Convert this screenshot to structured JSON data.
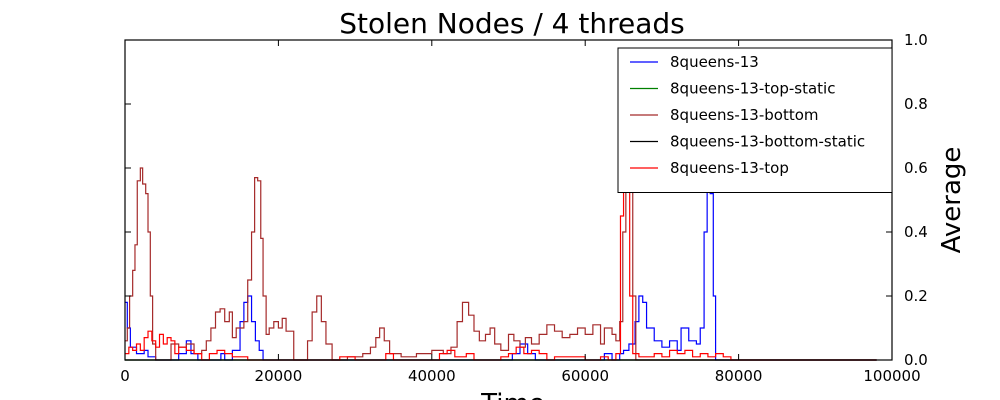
{
  "chart_data": {
    "type": "line",
    "title": "Stolen Nodes / 4 threads",
    "xlabel": "Time",
    "ylabel": "Average",
    "xlim": [
      0,
      100000
    ],
    "ylim": [
      0,
      1.0
    ],
    "x_ticks": [
      "0",
      "20000",
      "40000",
      "60000",
      "80000",
      "100000"
    ],
    "y_ticks": [
      "0.0",
      "0.2",
      "0.4",
      "0.6",
      "0.8",
      "1.0"
    ],
    "y_axis_side": "right",
    "grid": false,
    "legend_position": "top-right",
    "series": [
      {
        "name": "8queens-13",
        "color": "#0000ff",
        "points": [
          [
            0,
            0.18
          ],
          [
            300,
            0.1
          ],
          [
            700,
            0.04
          ],
          [
            1500,
            0.02
          ],
          [
            2500,
            0.03
          ],
          [
            3000,
            0.01
          ],
          [
            4000,
            0.0
          ],
          [
            7000,
            0.02
          ],
          [
            8000,
            0.06
          ],
          [
            8600,
            0.02
          ],
          [
            9500,
            0.0
          ],
          [
            11500,
            0.0
          ],
          [
            12500,
            0.02
          ],
          [
            13000,
            0.0
          ],
          [
            14000,
            0.03
          ],
          [
            15000,
            0.12
          ],
          [
            15500,
            0.18
          ],
          [
            16000,
            0.2
          ],
          [
            16500,
            0.12
          ],
          [
            17000,
            0.06
          ],
          [
            17500,
            0.03
          ],
          [
            18000,
            0.0
          ],
          [
            50000,
            0.0
          ],
          [
            50500,
            0.02
          ],
          [
            51500,
            0.05
          ],
          [
            52500,
            0.02
          ],
          [
            53500,
            0.0
          ],
          [
            61500,
            0.0
          ],
          [
            62500,
            0.02
          ],
          [
            63500,
            0.0
          ],
          [
            64500,
            0.02
          ],
          [
            65000,
            0.03
          ],
          [
            65700,
            0.05
          ],
          [
            66500,
            0.12
          ],
          [
            67000,
            0.2
          ],
          [
            67500,
            0.18
          ],
          [
            68000,
            0.1
          ],
          [
            69000,
            0.06
          ],
          [
            70000,
            0.04
          ],
          [
            71000,
            0.06
          ],
          [
            72000,
            0.03
          ],
          [
            72500,
            0.1
          ],
          [
            73000,
            0.1
          ],
          [
            73500,
            0.06
          ],
          [
            74500,
            0.05
          ],
          [
            75000,
            0.1
          ],
          [
            75500,
            0.4
          ],
          [
            75900,
            0.6
          ],
          [
            76300,
            0.52
          ],
          [
            76700,
            0.2
          ],
          [
            77000,
            0.0
          ],
          [
            98000,
            0.0
          ]
        ]
      },
      {
        "name": "8queens-13-top-static",
        "color": "#008000",
        "points": [
          [
            0,
            0.0
          ],
          [
            98000,
            0.0
          ]
        ]
      },
      {
        "name": "8queens-13-bottom",
        "color": "#a52a2a",
        "points": [
          [
            0,
            0.06
          ],
          [
            300,
            0.1
          ],
          [
            600,
            0.2
          ],
          [
            1000,
            0.28
          ],
          [
            1300,
            0.36
          ],
          [
            1600,
            0.56
          ],
          [
            2000,
            0.6
          ],
          [
            2300,
            0.55
          ],
          [
            2700,
            0.52
          ],
          [
            3000,
            0.4
          ],
          [
            3300,
            0.2
          ],
          [
            3600,
            0.05
          ],
          [
            4000,
            0.0
          ],
          [
            5500,
            0.0
          ],
          [
            6000,
            0.05
          ],
          [
            7000,
            0.04
          ],
          [
            8000,
            0.05
          ],
          [
            9000,
            0.02
          ],
          [
            10000,
            0.03
          ],
          [
            10600,
            0.06
          ],
          [
            11200,
            0.1
          ],
          [
            11800,
            0.15
          ],
          [
            12400,
            0.16
          ],
          [
            13000,
            0.12
          ],
          [
            13600,
            0.15
          ],
          [
            14000,
            0.07
          ],
          [
            14500,
            0.1
          ],
          [
            15500,
            0.12
          ],
          [
            16000,
            0.25
          ],
          [
            16500,
            0.4
          ],
          [
            16900,
            0.57
          ],
          [
            17300,
            0.56
          ],
          [
            17700,
            0.38
          ],
          [
            18000,
            0.2
          ],
          [
            18400,
            0.08
          ],
          [
            18800,
            0.1
          ],
          [
            19400,
            0.12
          ],
          [
            20000,
            0.1
          ],
          [
            20500,
            0.13
          ],
          [
            21000,
            0.09
          ],
          [
            22000,
            0.0
          ],
          [
            23000,
            0.0
          ],
          [
            23800,
            0.06
          ],
          [
            24400,
            0.15
          ],
          [
            25000,
            0.2
          ],
          [
            25600,
            0.12
          ],
          [
            26200,
            0.05
          ],
          [
            27000,
            0.0
          ],
          [
            28000,
            0.0
          ],
          [
            29000,
            0.01
          ],
          [
            31000,
            0.02
          ],
          [
            32000,
            0.04
          ],
          [
            32700,
            0.07
          ],
          [
            33200,
            0.1
          ],
          [
            33800,
            0.06
          ],
          [
            34500,
            0.02
          ],
          [
            36000,
            0.01
          ],
          [
            38000,
            0.02
          ],
          [
            40000,
            0.03
          ],
          [
            41500,
            0.02
          ],
          [
            42500,
            0.04
          ],
          [
            43300,
            0.12
          ],
          [
            44000,
            0.18
          ],
          [
            44800,
            0.14
          ],
          [
            45500,
            0.09
          ],
          [
            46200,
            0.06
          ],
          [
            47000,
            0.08
          ],
          [
            47600,
            0.1
          ],
          [
            48200,
            0.05
          ],
          [
            49000,
            0.03
          ],
          [
            50000,
            0.08
          ],
          [
            50700,
            0.06
          ],
          [
            51500,
            0.04
          ],
          [
            52200,
            0.07
          ],
          [
            53000,
            0.05
          ],
          [
            54000,
            0.08
          ],
          [
            55000,
            0.11
          ],
          [
            56000,
            0.09
          ],
          [
            57000,
            0.07
          ],
          [
            58000,
            0.08
          ],
          [
            59000,
            0.1
          ],
          [
            60000,
            0.08
          ],
          [
            61000,
            0.11
          ],
          [
            62000,
            0.05
          ],
          [
            62500,
            0.1
          ],
          [
            63500,
            0.08
          ],
          [
            64000,
            0.06
          ],
          [
            64500,
            0.12
          ],
          [
            64900,
            0.4
          ],
          [
            65300,
            0.58
          ],
          [
            65800,
            0.58
          ],
          [
            66200,
            0.2
          ],
          [
            66600,
            0.0
          ],
          [
            98000,
            0.0
          ]
        ]
      },
      {
        "name": "8queens-13-bottom-static",
        "color": "#000000",
        "points": [
          [
            0,
            0.0
          ],
          [
            98000,
            0.0
          ]
        ]
      },
      {
        "name": "8queens-13-top",
        "color": "#ff0000",
        "points": [
          [
            0,
            0.02
          ],
          [
            500,
            0.04
          ],
          [
            1000,
            0.03
          ],
          [
            1500,
            0.05
          ],
          [
            2000,
            0.03
          ],
          [
            2500,
            0.07
          ],
          [
            3000,
            0.09
          ],
          [
            3500,
            0.06
          ],
          [
            4000,
            0.04
          ],
          [
            4500,
            0.08
          ],
          [
            5000,
            0.05
          ],
          [
            5500,
            0.07
          ],
          [
            6000,
            0.06
          ],
          [
            6500,
            0.02
          ],
          [
            7000,
            0.04
          ],
          [
            8000,
            0.03
          ],
          [
            9000,
            0.02
          ],
          [
            10000,
            0.0
          ],
          [
            11000,
            0.02
          ],
          [
            12000,
            0.03
          ],
          [
            13000,
            0.02
          ],
          [
            14000,
            0.01
          ],
          [
            15000,
            0.01
          ],
          [
            16000,
            0.0
          ],
          [
            27000,
            0.0
          ],
          [
            28000,
            0.01
          ],
          [
            30000,
            0.0
          ],
          [
            34000,
            0.02
          ],
          [
            35000,
            0.0
          ],
          [
            41000,
            0.02
          ],
          [
            42000,
            0.03
          ],
          [
            43000,
            0.01
          ],
          [
            44500,
            0.02
          ],
          [
            45500,
            0.0
          ],
          [
            48000,
            0.0
          ],
          [
            49000,
            0.01
          ],
          [
            50000,
            0.02
          ],
          [
            51000,
            0.04
          ],
          [
            52000,
            0.02
          ],
          [
            53000,
            0.03
          ],
          [
            54000,
            0.02
          ],
          [
            55000,
            0.0
          ],
          [
            56000,
            0.01
          ],
          [
            59000,
            0.01
          ],
          [
            60000,
            0.0
          ],
          [
            62000,
            0.01
          ],
          [
            63000,
            0.0
          ],
          [
            64000,
            0.02
          ],
          [
            64600,
            0.45
          ],
          [
            65000,
            0.58
          ],
          [
            65400,
            0.58
          ],
          [
            65800,
            0.2
          ],
          [
            66200,
            0.02
          ],
          [
            67000,
            0.01
          ],
          [
            69000,
            0.02
          ],
          [
            70000,
            0.01
          ],
          [
            71000,
            0.03
          ],
          [
            72000,
            0.02
          ],
          [
            73000,
            0.03
          ],
          [
            74000,
            0.01
          ],
          [
            75000,
            0.02
          ],
          [
            76000,
            0.01
          ],
          [
            77000,
            0.02
          ],
          [
            78000,
            0.01
          ],
          [
            79000,
            0.0
          ],
          [
            98000,
            0.0
          ]
        ]
      }
    ]
  }
}
